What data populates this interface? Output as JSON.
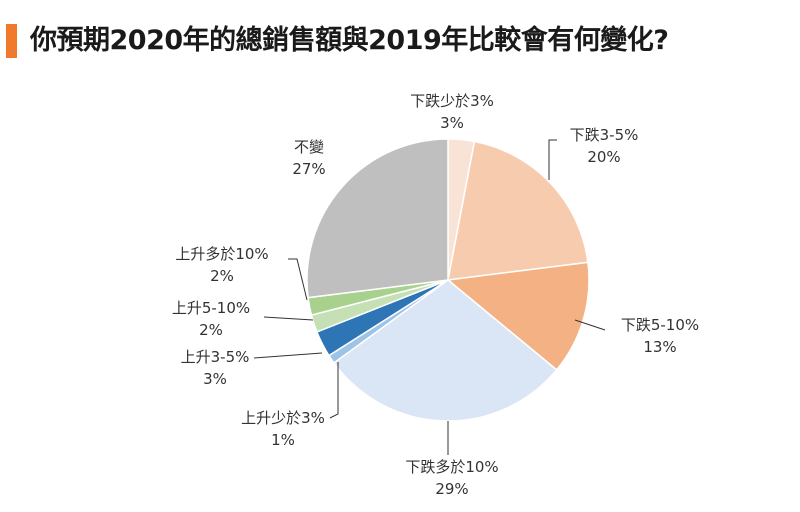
{
  "title": "你預期2020年的總銷售額與2019年比較會有何變化?",
  "colors": {
    "accent": "#f0792b"
  },
  "chart_data": {
    "type": "pie",
    "title": "你預期2020年的總銷售額與2019年比較會有何變化?",
    "start": "12 o'clock",
    "direction": "clockwise",
    "slices": [
      {
        "label": "下跌少於3%",
        "pct": "3%",
        "value": 3,
        "color": "#f9e2d6"
      },
      {
        "label": "下跌3-5%",
        "pct": "20%",
        "value": 20,
        "color": "#f7cbad"
      },
      {
        "label": "下跌5-10%",
        "pct": "13%",
        "value": 13,
        "color": "#f4b183"
      },
      {
        "label": "下跌多於10%",
        "pct": "29%",
        "value": 29,
        "color": "#dae6f5"
      },
      {
        "label": "上升少於3%",
        "pct": "1%",
        "value": 1,
        "color": "#9dc3e6"
      },
      {
        "label": "上升3-5%",
        "pct": "3%",
        "value": 3,
        "color": "#2e75b6"
      },
      {
        "label": "上升5-10%",
        "pct": "2%",
        "value": 2,
        "color": "#c5e0b4"
      },
      {
        "label": "上升多於10%",
        "pct": "2%",
        "value": 2,
        "color": "#a9d18e"
      },
      {
        "label": "不變",
        "pct": "27%",
        "value": 27,
        "color": "#bfbfbf"
      }
    ]
  }
}
